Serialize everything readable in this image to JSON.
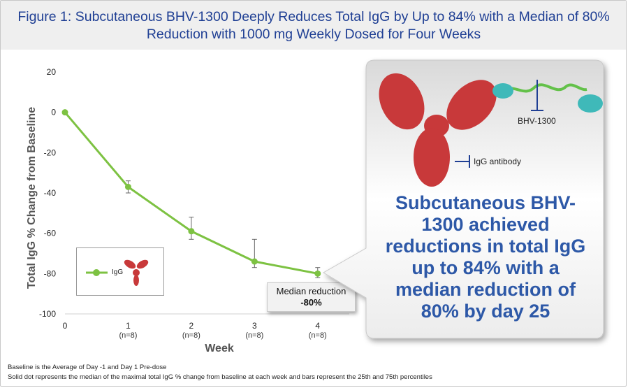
{
  "title": "Figure 1: Subcutaneous BHV-1300 Deeply Reduces Total IgG by Up to 84% with a Median of 80% Reduction with 1000 mg Weekly Dosed for Four Weeks",
  "chart_data": {
    "type": "line",
    "title": "Figure 1: Subcutaneous BHV-1300 Deeply Reduces Total IgG by Up to 84% with a Median of 80% Reduction with 1000 mg Weekly Dosed for Four Weeks",
    "xlabel": "Week",
    "ylabel": "Total IgG % Change from Baseline",
    "ylim": [
      -100,
      20
    ],
    "xlim": [
      0,
      4.5
    ],
    "yticks": [
      20,
      0,
      -20,
      -40,
      -60,
      -80,
      -100
    ],
    "xticks": [
      {
        "value": 0,
        "label": "0",
        "n": ""
      },
      {
        "value": 1,
        "label": "1",
        "n": "(n=8)"
      },
      {
        "value": 2,
        "label": "2",
        "n": "(n=8)"
      },
      {
        "value": 3,
        "label": "3",
        "n": "(n=8)"
      },
      {
        "value": 4,
        "label": "4",
        "n": "(n=8)"
      }
    ],
    "series": [
      {
        "name": "IgG",
        "color": "#7dc242",
        "x": [
          0,
          1,
          2,
          3,
          4
        ],
        "y": [
          0,
          -37,
          -59,
          -74,
          -80
        ],
        "p25": [
          0,
          -40,
          -63,
          -77,
          -82
        ],
        "p75": [
          0,
          -34,
          -52,
          -63,
          -77
        ]
      }
    ],
    "annotation": {
      "line1": "Median reduction",
      "line2": "-80%"
    },
    "legend": {
      "entry": "IgG",
      "placement": "lower-left"
    }
  },
  "callout": {
    "text": "Subcutaneous BHV-1300 achieved reductions in total IgG up to 84% with a median reduction of 80% by day 25",
    "label_bhv": "BHV-1300",
    "label_igg": "IgG antibody"
  },
  "colors": {
    "title": "#1f3f94",
    "callout_text": "#2d58a7",
    "line": "#7dc242",
    "antibody": "#c8393a",
    "peptide": "#3fb9b9"
  },
  "footnotes": [
    "Baseline is the Average of Day -1 and Day 1 Pre-dose",
    "Solid dot represents the median of the maximal total IgG % change from baseline at each week and bars represent the 25th and 75th percentiles"
  ]
}
